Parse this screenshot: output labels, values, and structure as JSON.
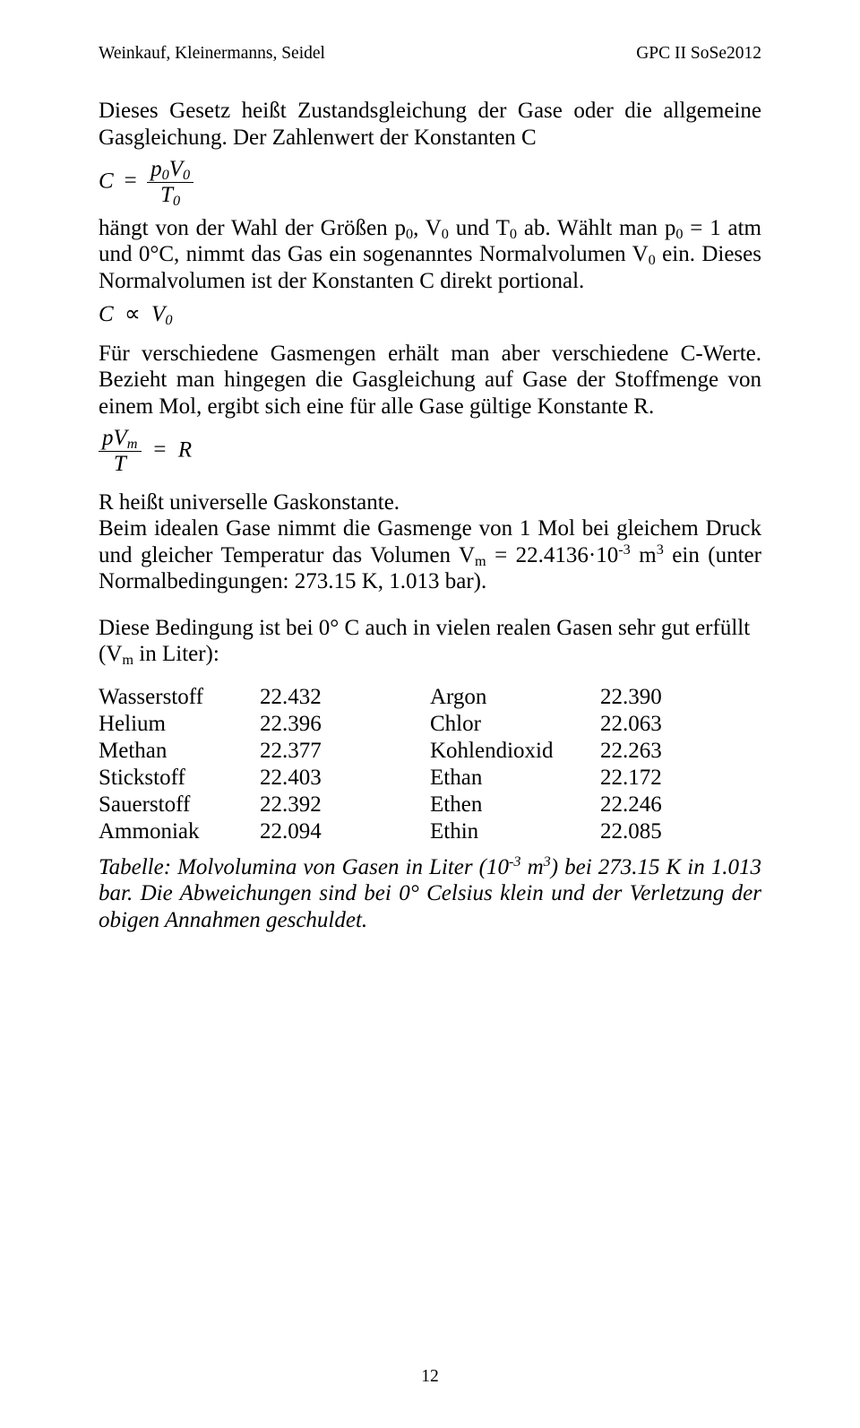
{
  "header": {
    "left": "Weinkauf, Kleinermanns, Seidel",
    "right": "GPC II SoSe2012"
  },
  "p1a": "Dieses Gesetz heißt Zustandsgleichung der Gase oder die allgemeine Gasgleichung. Der Zahlenwert der Konstanten C",
  "eq1": {
    "C": "C",
    "eq": "=",
    "num_p": "p",
    "num_V": "V",
    "sub0a": "0",
    "sub0b": "0",
    "den_T": "T",
    "sub0c": "0"
  },
  "p2a": "hängt von der Wahl der Größen p",
  "p2b": ", V",
  "p2c": " und T",
  "p2d": " ab. Wählt man p",
  "p2e": " = 1 atm und 0°C, nimmt das Gas ein sogenanntes Normalvolumen V",
  "p2f": " ein. Dieses Normalvolumen ist der Konstanten C direkt portional.",
  "eq2": {
    "C": "C",
    "prop": "∝",
    "V": "V",
    "sub0": "0"
  },
  "p3": "Für verschiedene Gasmengen erhält man aber verschiedene C-Werte. Bezieht man hingegen die Gasgleichung auf Gase der Stoffmenge von einem Mol, ergibt sich eine für alle Gase gültige Konstante R.",
  "eq3": {
    "num_p": "p",
    "num_V": "V",
    "subm": "m",
    "den_T": "T",
    "eq": "=",
    "R": "R"
  },
  "p4a": "R heißt universelle Gaskonstante.",
  "p4b_1": "Beim idealen Gase nimmt die Gasmenge von 1 Mol bei gleichem Druck und gleicher Temperatur das Volumen V",
  "p4b_subm": "m",
  "p4b_2": " = 22.4136·10",
  "p4b_sup": "-3",
  "p4b_3": " m",
  "p4b_sup2": "3",
  "p4b_4": " ein (unter Normalbedingungen: 273.15 K, 1.013 bar).",
  "p5a": "Diese Bedingung ist bei 0° C auch in vielen realen Gasen sehr gut erfüllt (V",
  "p5b": " in Liter):",
  "table": {
    "col1": [
      "Wasserstoff",
      "Helium",
      "Methan",
      "Stickstoff",
      "Sauerstoff",
      "Ammoniak"
    ],
    "col2": [
      "22.432",
      "22.396",
      "22.377",
      "22.403",
      "22.392",
      "22.094"
    ],
    "col3": [
      "Argon",
      "Chlor",
      "Kohlendioxid",
      "Ethan",
      "Ethen",
      "Ethin"
    ],
    "col4": [
      "22.390",
      "22.063",
      "22.263",
      "22.172",
      "22.246",
      "22.085"
    ]
  },
  "caption_1": "Tabelle: Molvolumina von Gasen in Liter (10",
  "caption_sup1": "-3",
  "caption_2": " m",
  "caption_sup2": "3",
  "caption_3": ") bei 273.15 K in 1.013 bar. Die Abweichungen sind bei 0° Celsius klein und der Verletzung der obigen Annahmen geschuldet.",
  "pagenum": "12"
}
